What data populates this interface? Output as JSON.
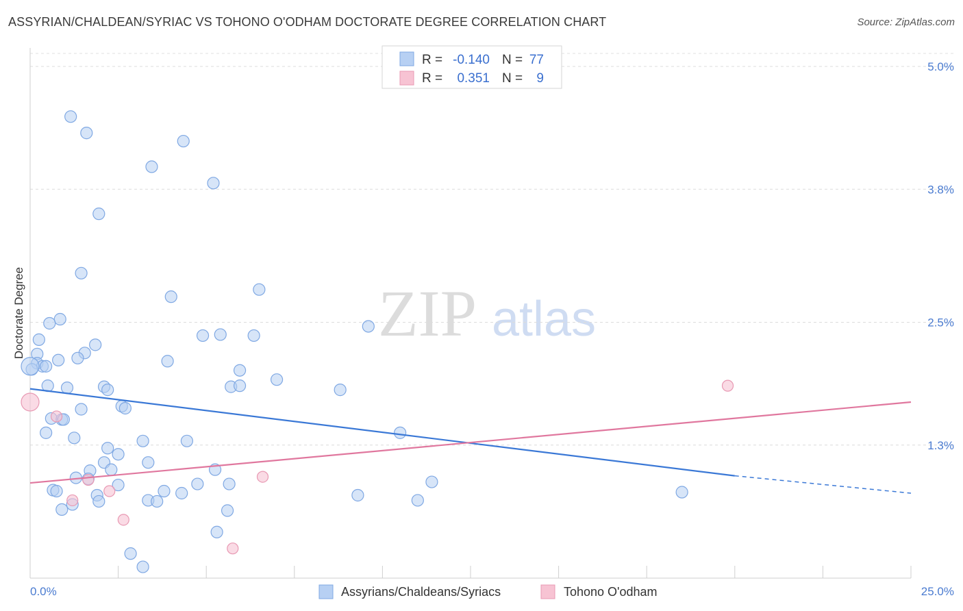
{
  "chart_data": {
    "type": "scatter",
    "title": "ASSYRIAN/CHALDEAN/SYRIAC VS TOHONO O'ODHAM DOCTORATE DEGREE CORRELATION CHART",
    "source": "Source: ZipAtlas.com",
    "xlabel": "",
    "ylabel": "Doctorate Degree",
    "xlim": [
      0,
      25
    ],
    "ylim": [
      0,
      5.2
    ],
    "x_tick_labels": {
      "min": "0.0%",
      "max": "25.0%"
    },
    "y_ticks": [
      {
        "value": 1.3,
        "label": "1.3%"
      },
      {
        "value": 2.5,
        "label": "2.5%"
      },
      {
        "value": 3.8,
        "label": "3.8%"
      },
      {
        "value": 5.0,
        "label": "5.0%"
      }
    ],
    "watermark": {
      "zip": "ZIP",
      "atlas": "atlas"
    },
    "legend": {
      "r_label": "R =",
      "n_label": "N =",
      "entries": [
        {
          "r": "-0.140",
          "n": "77"
        },
        {
          "r": "0.351",
          "n": "9"
        }
      ]
    },
    "colors": {
      "blue_fill": "#b7d0f3",
      "blue_stroke": "#7fa8e3",
      "blue_line": "#3a78d6",
      "pink_fill": "#f7c3d3",
      "pink_stroke": "#e899b3",
      "pink_line": "#e0779e"
    },
    "series": [
      {
        "name": "Assyrians/Chaldeans/Syriacs",
        "trend": {
          "x0": 0,
          "y0": 1.85,
          "x1": 20,
          "y1": 1.0,
          "dash_to": 25,
          "dash_y": 0.83
        },
        "points": [
          {
            "x": 1.15,
            "y": 4.51
          },
          {
            "x": 1.6,
            "y": 4.35
          },
          {
            "x": 4.35,
            "y": 4.27
          },
          {
            "x": 3.45,
            "y": 4.02
          },
          {
            "x": 5.2,
            "y": 3.86
          },
          {
            "x": 1.95,
            "y": 3.56
          },
          {
            "x": 1.45,
            "y": 2.98
          },
          {
            "x": 4.0,
            "y": 2.75
          },
          {
            "x": 6.5,
            "y": 2.82
          },
          {
            "x": 0.85,
            "y": 2.53
          },
          {
            "x": 0.55,
            "y": 2.49
          },
          {
            "x": 9.6,
            "y": 2.46
          },
          {
            "x": 0.25,
            "y": 2.33
          },
          {
            "x": 4.9,
            "y": 2.37
          },
          {
            "x": 5.4,
            "y": 2.38
          },
          {
            "x": 6.35,
            "y": 2.37
          },
          {
            "x": 1.85,
            "y": 2.28
          },
          {
            "x": 1.55,
            "y": 2.2
          },
          {
            "x": 0.2,
            "y": 2.19
          },
          {
            "x": 1.35,
            "y": 2.15
          },
          {
            "x": 0.8,
            "y": 2.13
          },
          {
            "x": 0.2,
            "y": 2.1
          },
          {
            "x": 0.35,
            "y": 2.07
          },
          {
            "x": 0.45,
            "y": 2.07
          },
          {
            "x": 0.05,
            "y": 2.04
          },
          {
            "x": 3.9,
            "y": 2.12
          },
          {
            "x": 5.95,
            "y": 2.03
          },
          {
            "x": 7.0,
            "y": 1.94
          },
          {
            "x": 0.5,
            "y": 1.88
          },
          {
            "x": 1.05,
            "y": 1.86
          },
          {
            "x": 2.1,
            "y": 1.87
          },
          {
            "x": 2.2,
            "y": 1.84
          },
          {
            "x": 5.7,
            "y": 1.87
          },
          {
            "x": 5.95,
            "y": 1.88
          },
          {
            "x": 8.8,
            "y": 1.84
          },
          {
            "x": 2.6,
            "y": 1.68
          },
          {
            "x": 2.7,
            "y": 1.66
          },
          {
            "x": 1.45,
            "y": 1.65
          },
          {
            "x": 0.6,
            "y": 1.56
          },
          {
            "x": 0.9,
            "y": 1.55
          },
          {
            "x": 0.95,
            "y": 1.55
          },
          {
            "x": 0.45,
            "y": 1.42
          },
          {
            "x": 10.5,
            "y": 1.42
          },
          {
            "x": 1.25,
            "y": 1.37
          },
          {
            "x": 3.2,
            "y": 1.34
          },
          {
            "x": 4.45,
            "y": 1.34
          },
          {
            "x": 2.2,
            "y": 1.27
          },
          {
            "x": 2.5,
            "y": 1.21
          },
          {
            "x": 3.35,
            "y": 1.13
          },
          {
            "x": 2.1,
            "y": 1.13
          },
          {
            "x": 2.3,
            "y": 1.06
          },
          {
            "x": 5.25,
            "y": 1.06
          },
          {
            "x": 1.7,
            "y": 1.05
          },
          {
            "x": 1.3,
            "y": 0.98
          },
          {
            "x": 1.65,
            "y": 0.97
          },
          {
            "x": 2.5,
            "y": 0.91
          },
          {
            "x": 4.75,
            "y": 0.92
          },
          {
            "x": 5.65,
            "y": 0.92
          },
          {
            "x": 11.4,
            "y": 0.94
          },
          {
            "x": 0.65,
            "y": 0.86
          },
          {
            "x": 0.75,
            "y": 0.85
          },
          {
            "x": 3.8,
            "y": 0.85
          },
          {
            "x": 4.3,
            "y": 0.83
          },
          {
            "x": 9.3,
            "y": 0.81
          },
          {
            "x": 18.5,
            "y": 0.84
          },
          {
            "x": 1.9,
            "y": 0.81
          },
          {
            "x": 3.35,
            "y": 0.76
          },
          {
            "x": 3.6,
            "y": 0.75
          },
          {
            "x": 1.95,
            "y": 0.75
          },
          {
            "x": 11.0,
            "y": 0.76
          },
          {
            "x": 1.2,
            "y": 0.72
          },
          {
            "x": 0.9,
            "y": 0.67
          },
          {
            "x": 5.6,
            "y": 0.66
          },
          {
            "x": 5.3,
            "y": 0.45
          },
          {
            "x": 2.85,
            "y": 0.24
          },
          {
            "x": 3.2,
            "y": 0.11
          },
          {
            "x": 0.0,
            "y": 2.07
          }
        ]
      },
      {
        "name": "Tohono O'odham",
        "trend": {
          "x0": 0,
          "y0": 0.93,
          "x1": 25,
          "y1": 1.72
        },
        "points": [
          {
            "x": 0.0,
            "y": 1.72
          },
          {
            "x": 0.75,
            "y": 1.58
          },
          {
            "x": 19.8,
            "y": 1.88
          },
          {
            "x": 6.6,
            "y": 0.99
          },
          {
            "x": 1.65,
            "y": 0.96
          },
          {
            "x": 2.25,
            "y": 0.85
          },
          {
            "x": 1.2,
            "y": 0.76
          },
          {
            "x": 2.65,
            "y": 0.57
          },
          {
            "x": 5.75,
            "y": 0.29
          }
        ]
      }
    ]
  }
}
